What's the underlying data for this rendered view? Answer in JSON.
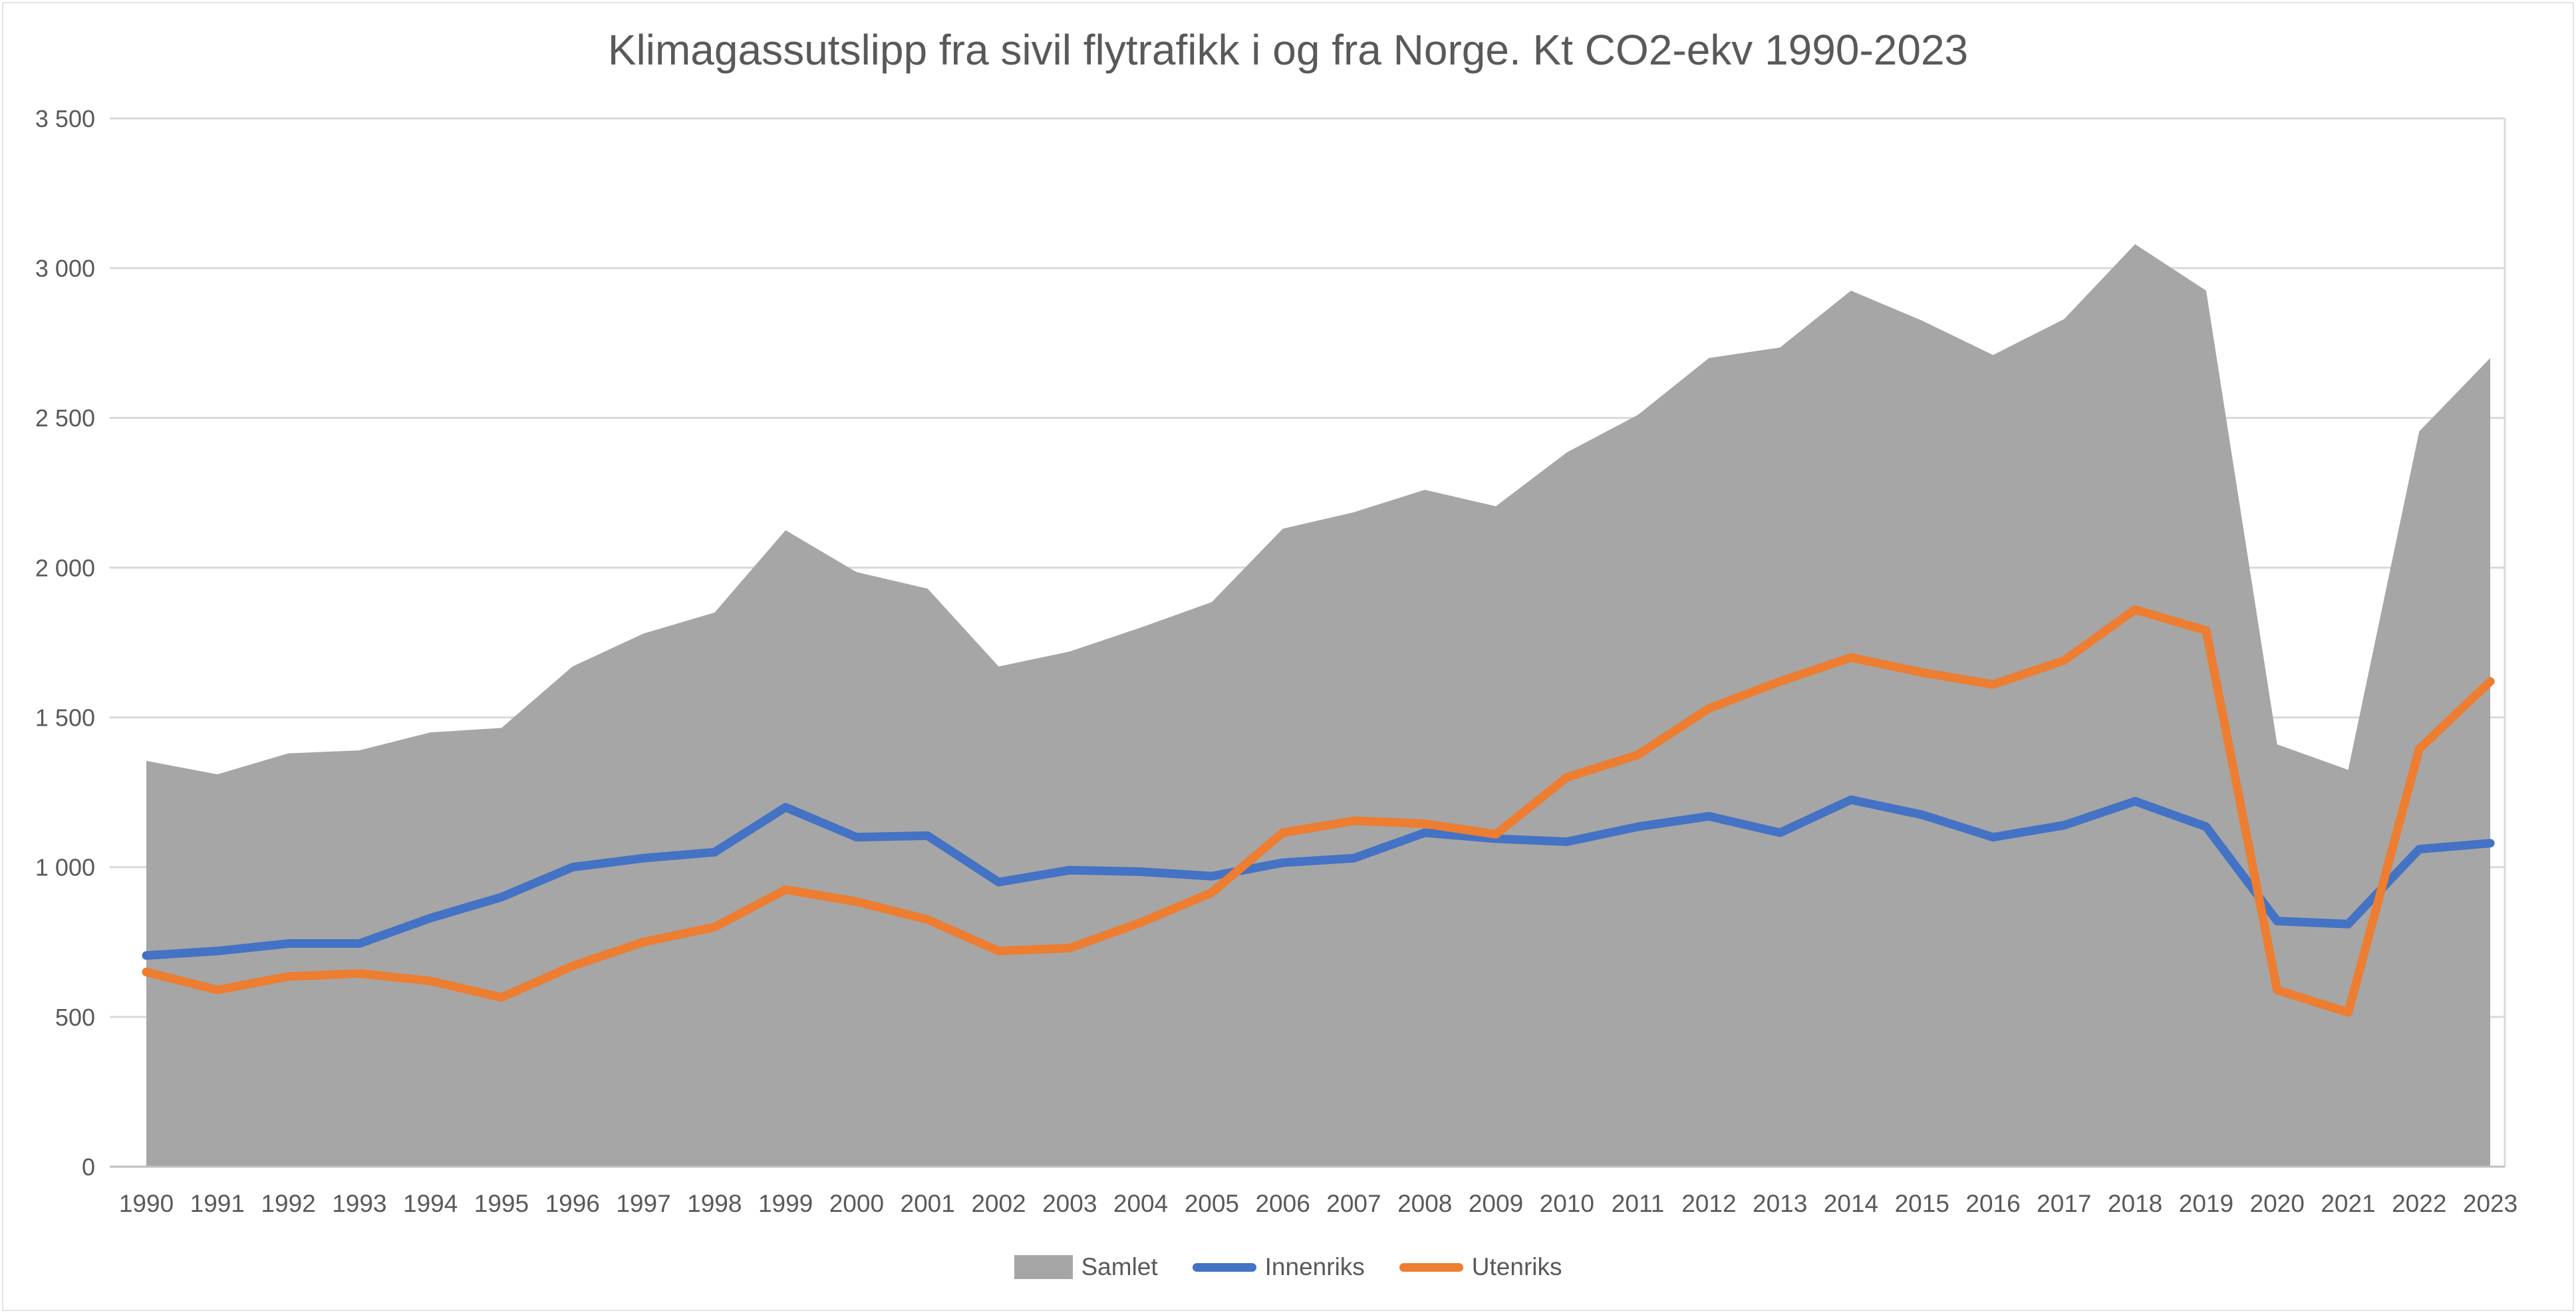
{
  "title": "Klimagassutslipp fra sivil flytrafikk i og fra Norge. Kt CO2-ekv 1990-2023",
  "colors": {
    "area": "#A6A6A6",
    "innenriks": "#4472C4",
    "utenriks": "#ED7D31",
    "text": "#595959",
    "gridline": "#D9D9D9",
    "axis_line": "#BFBFBF",
    "background": "#FFFFFF"
  },
  "legend": {
    "samlet": "Samlet",
    "innenriks": "Innenriks",
    "utenriks": "Utenriks"
  },
  "y_axis": {
    "min": 0,
    "max": 3500,
    "step": 500,
    "ticks": [
      {
        "label": "3 500",
        "value": 3500
      },
      {
        "label": "3 000",
        "value": 3000
      },
      {
        "label": "2 500",
        "value": 2500
      },
      {
        "label": "2 000",
        "value": 2000
      },
      {
        "label": "1 500",
        "value": 1500
      },
      {
        "label": "1 000",
        "value": 1000
      },
      {
        "label": "500",
        "value": 500
      },
      {
        "label": "0",
        "value": 0
      }
    ]
  },
  "chart_data": {
    "type": "area",
    "subtype": "area + line combo",
    "title": "Klimagassutslipp fra sivil flytrafikk i og fra Norge. Kt CO2-ekv 1990-2023",
    "xlabel": "",
    "ylabel": "",
    "ylim": [
      0,
      3500
    ],
    "grid": true,
    "legend_position": "bottom",
    "categories": [
      1990,
      1991,
      1992,
      1993,
      1994,
      1995,
      1996,
      1997,
      1998,
      1999,
      2000,
      2001,
      2002,
      2003,
      2004,
      2005,
      2006,
      2007,
      2008,
      2009,
      2010,
      2011,
      2012,
      2013,
      2014,
      2015,
      2016,
      2017,
      2018,
      2019,
      2020,
      2021,
      2022,
      2023
    ],
    "series": [
      {
        "name": "Samlet",
        "type": "area",
        "color": "#A6A6A6",
        "values": [
          1355,
          1310,
          1380,
          1390,
          1450,
          1465,
          1670,
          1780,
          1850,
          2125,
          1985,
          1930,
          1670,
          1720,
          1800,
          1885,
          2130,
          2185,
          2260,
          2205,
          2385,
          2510,
          2700,
          2735,
          2925,
          2825,
          2710,
          2830,
          3080,
          2925,
          1410,
          1325,
          2455,
          2700
        ]
      },
      {
        "name": "Innenriks",
        "type": "line",
        "color": "#4472C4",
        "values": [
          705,
          720,
          745,
          745,
          830,
          900,
          1000,
          1030,
          1050,
          1200,
          1100,
          1105,
          950,
          990,
          985,
          970,
          1015,
          1030,
          1115,
          1095,
          1085,
          1135,
          1170,
          1115,
          1225,
          1175,
          1100,
          1140,
          1220,
          1135,
          820,
          810,
          1060,
          1080
        ]
      },
      {
        "name": "Utenriks",
        "type": "line",
        "color": "#ED7D31",
        "values": [
          650,
          590,
          635,
          645,
          620,
          565,
          670,
          750,
          800,
          925,
          885,
          825,
          720,
          730,
          815,
          915,
          1115,
          1155,
          1145,
          1110,
          1300,
          1375,
          1530,
          1620,
          1700,
          1650,
          1610,
          1690,
          1860,
          1790,
          590,
          515,
          1395,
          1620
        ]
      }
    ]
  }
}
